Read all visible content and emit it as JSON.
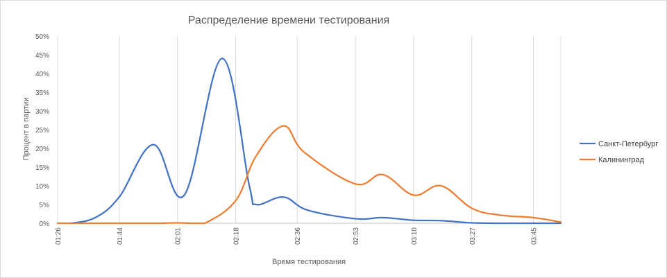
{
  "chart_data": {
    "type": "line",
    "title": "Распределение времени тестирования",
    "xlabel": "Время тестирования",
    "ylabel": "Процент в партии",
    "y_ticks": [
      "0%",
      "5%",
      "10%",
      "15%",
      "20%",
      "25%",
      "30%",
      "35%",
      "40%",
      "45%",
      "50%"
    ],
    "ylim": [
      0,
      50
    ],
    "x_ticks": [
      "01:26",
      "01:44",
      "02:01",
      "02:18",
      "02:36",
      "02:53",
      "03:10",
      "03:27",
      "03:45"
    ],
    "x_range": [
      "01:26",
      "03:53"
    ],
    "grid": "vertical",
    "legend": "right",
    "series": [
      {
        "name": "Санкт-Петербург",
        "color": "#4472c4",
        "x": [
          "01:30",
          "01:37",
          "01:44",
          "01:54",
          "02:03",
          "02:14",
          "02:22",
          "02:24",
          "02:32",
          "02:39",
          "02:53",
          "03:01",
          "03:10",
          "03:18",
          "03:27",
          "03:35",
          "03:45",
          "03:53"
        ],
        "y": [
          0,
          1.5,
          7,
          21,
          7.5,
          44,
          10,
          5,
          7,
          3.5,
          1.2,
          1.5,
          0.8,
          0.7,
          0.1,
          0,
          0,
          0
        ]
      },
      {
        "name": "Калининград",
        "color": "#ed7d31",
        "x": [
          "01:26",
          "01:44",
          "01:54",
          "02:01",
          "02:05",
          "02:09",
          "02:18",
          "02:24",
          "02:32",
          "02:38",
          "02:53",
          "03:01",
          "03:10",
          "03:18",
          "03:27",
          "03:35",
          "03:45",
          "03:53"
        ],
        "y": [
          0,
          0,
          0,
          0.1,
          0,
          0,
          6,
          18,
          26,
          19,
          10.5,
          13,
          7.5,
          10,
          4,
          2.2,
          1.5,
          0.3
        ]
      }
    ]
  }
}
